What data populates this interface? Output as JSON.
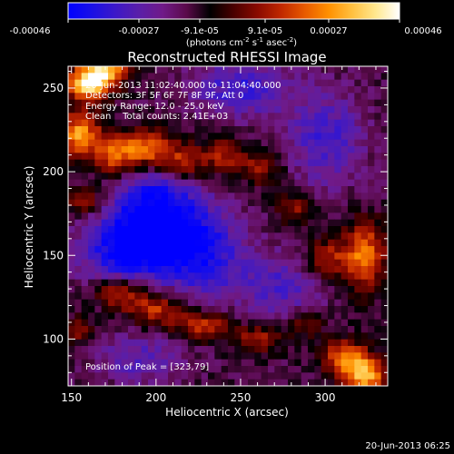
{
  "colorbar": {
    "tick_labels": [
      "-0.00046",
      "-0.00027",
      "-9.1e-05",
      "9.1e-05",
      "0.00027",
      "0.00046"
    ],
    "units_main": "(photons cm",
    "units_exp1": "-2",
    "units_mid": " s",
    "units_exp2": "-1",
    "units_mid2": " asec",
    "units_exp3": "-2",
    "units_close": ")",
    "colormap": [
      "#0000ff",
      "#1a10e6",
      "#3c18c8",
      "#5a1ea8",
      "#701a88",
      "#5a0a4a",
      "#000000",
      "#4a0000",
      "#8a0a00",
      "#c02800",
      "#e85a00",
      "#ff9000",
      "#ffc040",
      "#ffe890",
      "#ffffff"
    ]
  },
  "chart_data": {
    "type": "heatmap",
    "title": "Reconstructed RHESSI Image",
    "xlabel": "Heliocentric X (arcsec)",
    "ylabel": "Heliocentric Y (arcsec)",
    "xlim": [
      148,
      337
    ],
    "ylim": [
      72,
      263
    ],
    "xticks": [
      150,
      200,
      250,
      300
    ],
    "yticks": [
      100,
      150,
      200,
      250
    ],
    "value_range": [
      -0.00046,
      0.00046
    ],
    "hot_regions": [
      {
        "x": 160,
        "y": 252,
        "amp": 0.00046,
        "sx": 9,
        "sy": 7
      },
      {
        "x": 170,
        "y": 260,
        "amp": 0.0004,
        "sx": 10,
        "sy": 6
      },
      {
        "x": 155,
        "y": 222,
        "amp": 0.0004,
        "sx": 8,
        "sy": 10
      },
      {
        "x": 176,
        "y": 210,
        "amp": 0.0003,
        "sx": 9,
        "sy": 9
      },
      {
        "x": 195,
        "y": 214,
        "amp": 0.00032,
        "sx": 10,
        "sy": 8
      },
      {
        "x": 215,
        "y": 205,
        "amp": 0.00026,
        "sx": 10,
        "sy": 8
      },
      {
        "x": 240,
        "y": 210,
        "amp": 0.00022,
        "sx": 9,
        "sy": 7
      },
      {
        "x": 262,
        "y": 202,
        "amp": 0.0002,
        "sx": 9,
        "sy": 7
      },
      {
        "x": 158,
        "y": 182,
        "amp": 0.00022,
        "sx": 8,
        "sy": 6
      },
      {
        "x": 323,
        "y": 150,
        "amp": 0.00036,
        "sx": 9,
        "sy": 14
      },
      {
        "x": 300,
        "y": 148,
        "amp": 0.00024,
        "sx": 8,
        "sy": 8
      },
      {
        "x": 282,
        "y": 178,
        "amp": 0.0002,
        "sx": 7,
        "sy": 7
      },
      {
        "x": 178,
        "y": 128,
        "amp": 0.00032,
        "sx": 11,
        "sy": 7
      },
      {
        "x": 200,
        "y": 118,
        "amp": 0.00028,
        "sx": 12,
        "sy": 7
      },
      {
        "x": 228,
        "y": 108,
        "amp": 0.00026,
        "sx": 12,
        "sy": 6
      },
      {
        "x": 260,
        "y": 100,
        "amp": 0.00022,
        "sx": 10,
        "sy": 6
      },
      {
        "x": 288,
        "y": 110,
        "amp": 0.0002,
        "sx": 8,
        "sy": 6
      },
      {
        "x": 323,
        "y": 79,
        "amp": 0.00046,
        "sx": 9,
        "sy": 8
      },
      {
        "x": 310,
        "y": 90,
        "amp": 0.0003,
        "sx": 9,
        "sy": 7
      },
      {
        "x": 155,
        "y": 105,
        "amp": 0.00018,
        "sx": 6,
        "sy": 6
      }
    ],
    "cold_regions": [
      {
        "x": 205,
        "y": 165,
        "amp": -0.00034,
        "sx": 22,
        "sy": 16
      },
      {
        "x": 180,
        "y": 150,
        "amp": -0.00026,
        "sx": 18,
        "sy": 18
      },
      {
        "x": 230,
        "y": 145,
        "amp": -0.0002,
        "sx": 18,
        "sy": 18
      },
      {
        "x": 200,
        "y": 190,
        "amp": -0.00018,
        "sx": 16,
        "sy": 12
      },
      {
        "x": 300,
        "y": 220,
        "amp": -0.0002,
        "sx": 16,
        "sy": 20
      },
      {
        "x": 250,
        "y": 250,
        "amp": -0.00022,
        "sx": 20,
        "sy": 12
      },
      {
        "x": 275,
        "y": 130,
        "amp": -0.00018,
        "sx": 16,
        "sy": 14
      },
      {
        "x": 190,
        "y": 88,
        "amp": -0.00016,
        "sx": 18,
        "sy": 10
      }
    ]
  },
  "info": {
    "time_range": "20-Jun-2013 11:02:40.000 to 11:04:40.000",
    "detectors": "Detectors: 3F 5F 6F 7F 8F 9F, Att 0",
    "energy": "Energy Range: 12.0 - 25.0 keV",
    "clean": "Clean    Total counts: 2.41E+03",
    "peak": "Position of Peak = [323,79]"
  },
  "footer": {
    "timestamp": "20-Jun-2013 06:25"
  }
}
